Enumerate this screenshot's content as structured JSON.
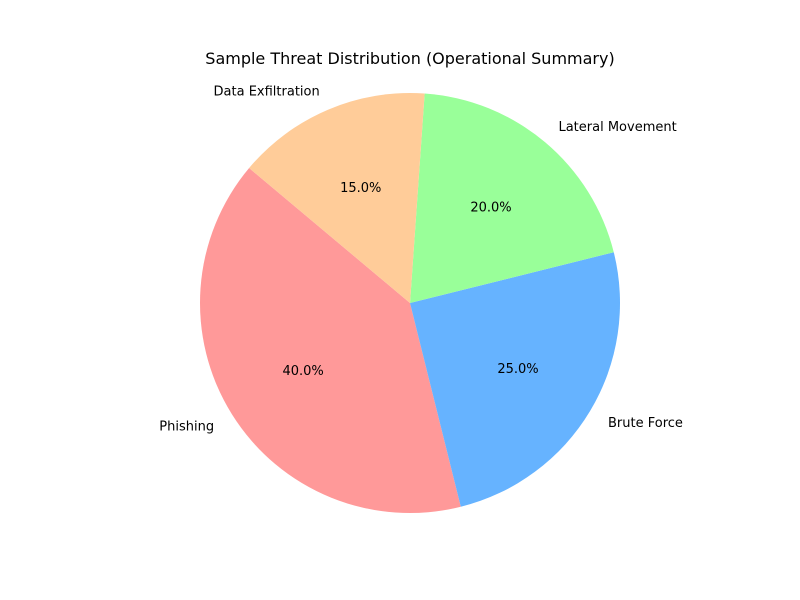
{
  "chart_data": {
    "type": "pie",
    "title": "Sample Threat Distribution (Operational Summary)",
    "categories": [
      "Phishing",
      "Brute Force",
      "Lateral Movement",
      "Data Exfiltration"
    ],
    "values": [
      40.0,
      25.0,
      20.0,
      15.0
    ],
    "value_labels": [
      "40.0%",
      "25.0%",
      "20.0%",
      "15.0%"
    ],
    "colors": [
      "#ff9999",
      "#66b3ff",
      "#99ff99",
      "#ffcc99"
    ],
    "start_angle": 140,
    "counterclockwise": true,
    "legend": false
  }
}
